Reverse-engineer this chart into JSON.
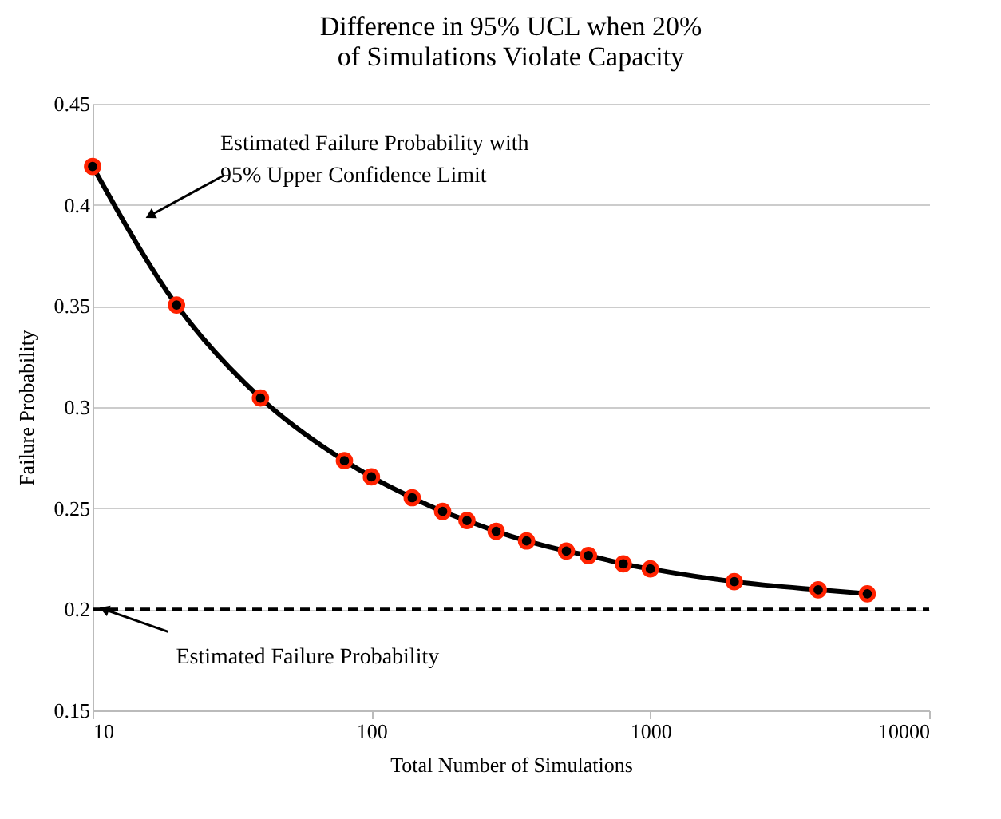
{
  "chart_data": {
    "type": "line",
    "title": "Difference in 95% UCL when 20%\nof Simulations Violate Capacity",
    "xlabel": "Total Number of Simulations",
    "ylabel": "Failure Probability",
    "x": [
      10,
      20,
      40,
      80,
      100,
      140,
      180,
      220,
      280,
      360,
      500,
      600,
      800,
      1000,
      2000,
      4000,
      6000
    ],
    "series": [
      {
        "color": "#000000",
        "values": [
          0.419,
          0.3505,
          0.3045,
          0.2735,
          0.2655,
          0.2552,
          0.2484,
          0.2439,
          0.2386,
          0.2338,
          0.2288,
          0.2266,
          0.2225,
          0.22,
          0.2137,
          0.2097,
          0.2077
        ]
      }
    ],
    "log": "x",
    "xlim": [
      10,
      10000
    ],
    "xticks": [
      10,
      100,
      1000,
      10000
    ],
    "ylim": [
      0.15,
      0.45
    ],
    "yticks": [
      0.15,
      0.2,
      0.25,
      0.3,
      0.35,
      0.4,
      0.45
    ],
    "grid": "y",
    "marker": "circle",
    "line_style": "solid",
    "ref_lines": [
      {
        "axis": "y",
        "value": 0.2,
        "line_style": "dashed",
        "color": "#000000"
      }
    ],
    "annotations": [
      "Estimated Failure Probability with\n95% Upper Confidence Limit",
      {
        "text": "Estimated Failure Probability",
        "x": 11,
        "y": 0.2
      }
    ]
  }
}
